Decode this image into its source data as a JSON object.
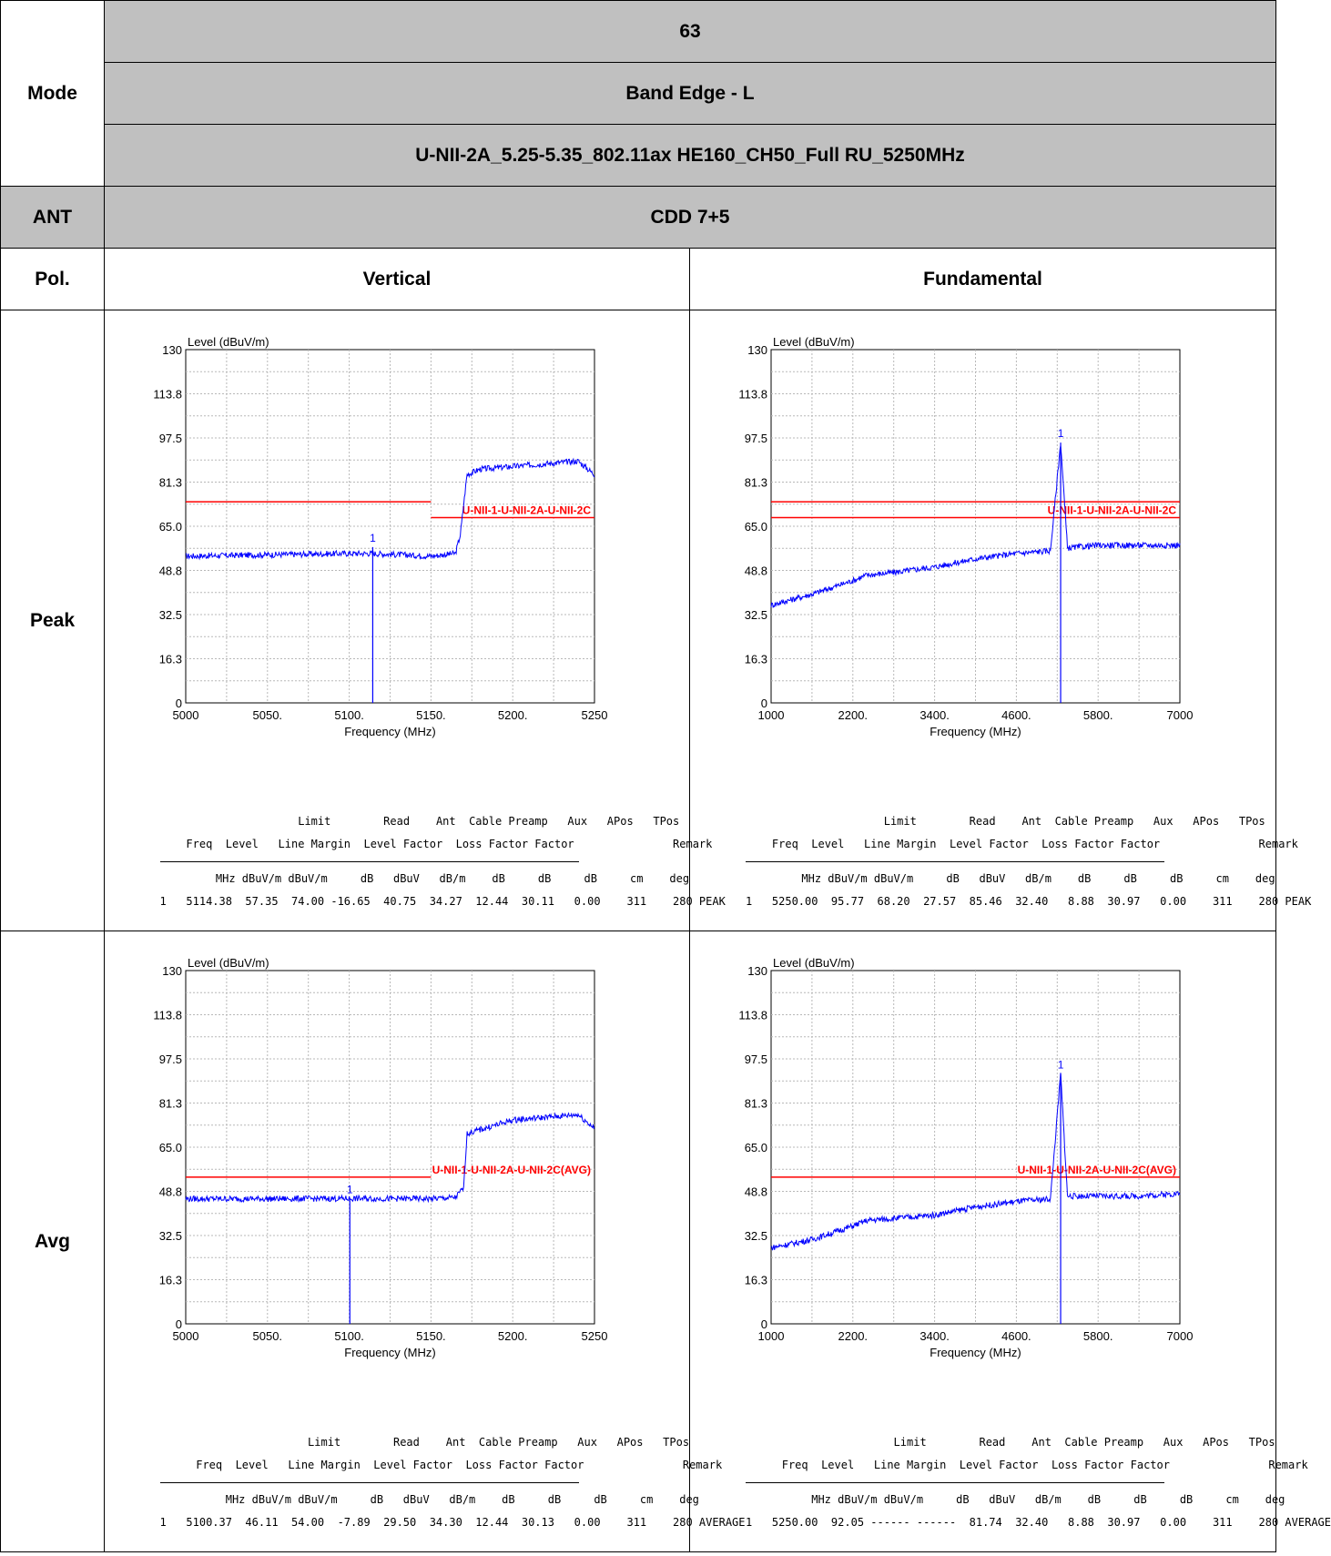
{
  "header": {
    "mode_label": "Mode",
    "channel": "63",
    "band_edge": "Band Edge - L",
    "config": "U-NII-2A_5.25-5.35_802.11ax HE160_CH50_Full RU_5250MHz",
    "ant_label": "ANT",
    "ant_value": "CDD 7+5",
    "pol_label": "Pol.",
    "pol_left": "Vertical",
    "pol_right": "Fundamental",
    "peak_label": "Peak",
    "avg_label": "Avg"
  },
  "table_header": {
    "line1": "              Limit        Read    Ant  Cable Preamp   Aux   APos   TPos",
    "line2": "  Freq  Level   Line Margin  Level Factor  Loss Factor Factor               Remark",
    "line3": "   MHz dBuV/m dBuV/m     dB   dBuV   dB/m    dB     dB     dB     cm    deg"
  },
  "charts": [
    {
      "ylabel": "Level (dBuV/m)",
      "xlabel": "Frequency (MHz)",
      "yticks": [
        "0",
        "16.3",
        "32.5",
        "48.8",
        "65.0",
        "81.3",
        "97.5",
        "113.8",
        "130"
      ],
      "xticks": [
        "5000",
        "5050.",
        "5100.",
        "5150.",
        "5200.",
        "5250"
      ],
      "limit_label": "U-NII-1-U-NII-2A-U-NII-2C",
      "marker": "1",
      "row": "1   5114.38  57.35  74.00 -16.65  40.75  34.27  12.44  30.11   0.00    311    280 PEAK"
    },
    {
      "ylabel": "Level (dBuV/m)",
      "xlabel": "Frequency (MHz)",
      "yticks": [
        "0",
        "16.3",
        "32.5",
        "48.8",
        "65.0",
        "81.3",
        "97.5",
        "113.8",
        "130"
      ],
      "xticks": [
        "1000",
        "2200.",
        "3400.",
        "4600.",
        "5800.",
        "7000"
      ],
      "limit_label": "U-NII-1-U-NII-2A-U-NII-2C",
      "marker": "1",
      "row": "1   5250.00  95.77  68.20  27.57  85.46  32.40   8.88  30.97   0.00    311    280 PEAK"
    },
    {
      "ylabel": "Level (dBuV/m)",
      "xlabel": "Frequency (MHz)",
      "yticks": [
        "0",
        "16.3",
        "32.5",
        "48.8",
        "65.0",
        "81.3",
        "97.5",
        "113.8",
        "130"
      ],
      "xticks": [
        "5000",
        "5050.",
        "5100.",
        "5150.",
        "5200.",
        "5250"
      ],
      "limit_label": "U-NII-1-U-NII-2A-U-NII-2C(AVG)",
      "marker": "1",
      "row": "1   5100.37  46.11  54.00  -7.89  29.50  34.30  12.44  30.13   0.00    311    280 AVERAGE"
    },
    {
      "ylabel": "Level (dBuV/m)",
      "xlabel": "Frequency (MHz)",
      "yticks": [
        "0",
        "16.3",
        "32.5",
        "48.8",
        "65.0",
        "81.3",
        "97.5",
        "113.8",
        "130"
      ],
      "xticks": [
        "1000",
        "2200.",
        "3400.",
        "4600.",
        "5800.",
        "7000"
      ],
      "limit_label": "U-NII-1-U-NII-2A-U-NII-2C(AVG)",
      "marker": "1",
      "row": "1   5250.00  92.05 ------ ------  81.74  32.40   8.88  30.97   0.00    311    280 AVERAGE"
    }
  ],
  "chart_data": [
    {
      "type": "line",
      "title": "Vertical Peak",
      "xlim": [
        5000,
        5250
      ],
      "ylim": [
        0,
        130
      ],
      "series": [
        {
          "color": "#0000ff",
          "x": [
            5000,
            5050,
            5100,
            5114,
            5150,
            5165,
            5168,
            5172,
            5180,
            5200,
            5220,
            5240,
            5250
          ],
          "y": [
            54,
            54.5,
            55,
            55,
            54,
            55,
            62,
            84,
            86,
            87,
            88,
            89,
            84
          ]
        }
      ],
      "limit": [
        {
          "x": [
            5000,
            5150
          ],
          "y": [
            74,
            74
          ]
        },
        {
          "x": [
            5150,
            5250
          ],
          "y": [
            68.2,
            68.2
          ]
        }
      ],
      "marker": {
        "x": 5114.38,
        "y": 57.35
      },
      "colors": {
        "trace": "#0000ff",
        "limit": "#ff0000"
      }
    },
    {
      "type": "line",
      "title": "Fundamental Peak",
      "xlim": [
        1000,
        7000
      ],
      "ylim": [
        0,
        130
      ],
      "series": [
        {
          "color": "#0000ff",
          "x": [
            1000,
            1600,
            2200,
            2400,
            2800,
            3400,
            4000,
            4600,
            5100,
            5250,
            5350,
            5800,
            6400,
            7000
          ],
          "y": [
            36,
            40,
            45,
            47,
            48,
            50,
            53,
            55,
            56,
            95.77,
            57,
            58,
            58,
            58
          ]
        }
      ],
      "limit": [
        {
          "x": [
            1000,
            7000
          ],
          "y": [
            74,
            74
          ]
        },
        {
          "x": [
            1000,
            7000
          ],
          "y": [
            68.2,
            68.2
          ]
        }
      ],
      "marker": {
        "x": 5250,
        "y": 95.77
      },
      "colors": {
        "trace": "#0000ff",
        "limit": "#ff0000"
      }
    },
    {
      "type": "line",
      "title": "Vertical Avg",
      "xlim": [
        5000,
        5250
      ],
      "ylim": [
        0,
        130
      ],
      "series": [
        {
          "color": "#0000ff",
          "x": [
            5000,
            5050,
            5100,
            5150,
            5165,
            5170,
            5172,
            5200,
            5220,
            5240,
            5250
          ],
          "y": [
            46,
            46,
            46.1,
            46,
            46.5,
            50,
            70,
            75,
            76,
            77,
            72
          ]
        }
      ],
      "limit": [
        {
          "x": [
            5000,
            5150
          ],
          "y": [
            54,
            54
          ]
        }
      ],
      "marker": {
        "x": 5100.37,
        "y": 46.11
      },
      "colors": {
        "trace": "#0000ff",
        "limit": "#ff0000"
      }
    },
    {
      "type": "line",
      "title": "Fundamental Avg",
      "xlim": [
        1000,
        7000
      ],
      "ylim": [
        0,
        130
      ],
      "series": [
        {
          "color": "#0000ff",
          "x": [
            1000,
            1600,
            2200,
            2400,
            3400,
            4000,
            4600,
            5100,
            5250,
            5350,
            5800,
            6400,
            7000
          ],
          "y": [
            28,
            31,
            36,
            38,
            40,
            43,
            45,
            46,
            92.05,
            47,
            47,
            47,
            48
          ]
        }
      ],
      "limit": [
        {
          "x": [
            1000,
            7000
          ],
          "y": [
            54,
            54
          ]
        }
      ],
      "marker": {
        "x": 5250,
        "y": 92.05
      },
      "colors": {
        "trace": "#0000ff",
        "limit": "#ff0000"
      }
    }
  ]
}
